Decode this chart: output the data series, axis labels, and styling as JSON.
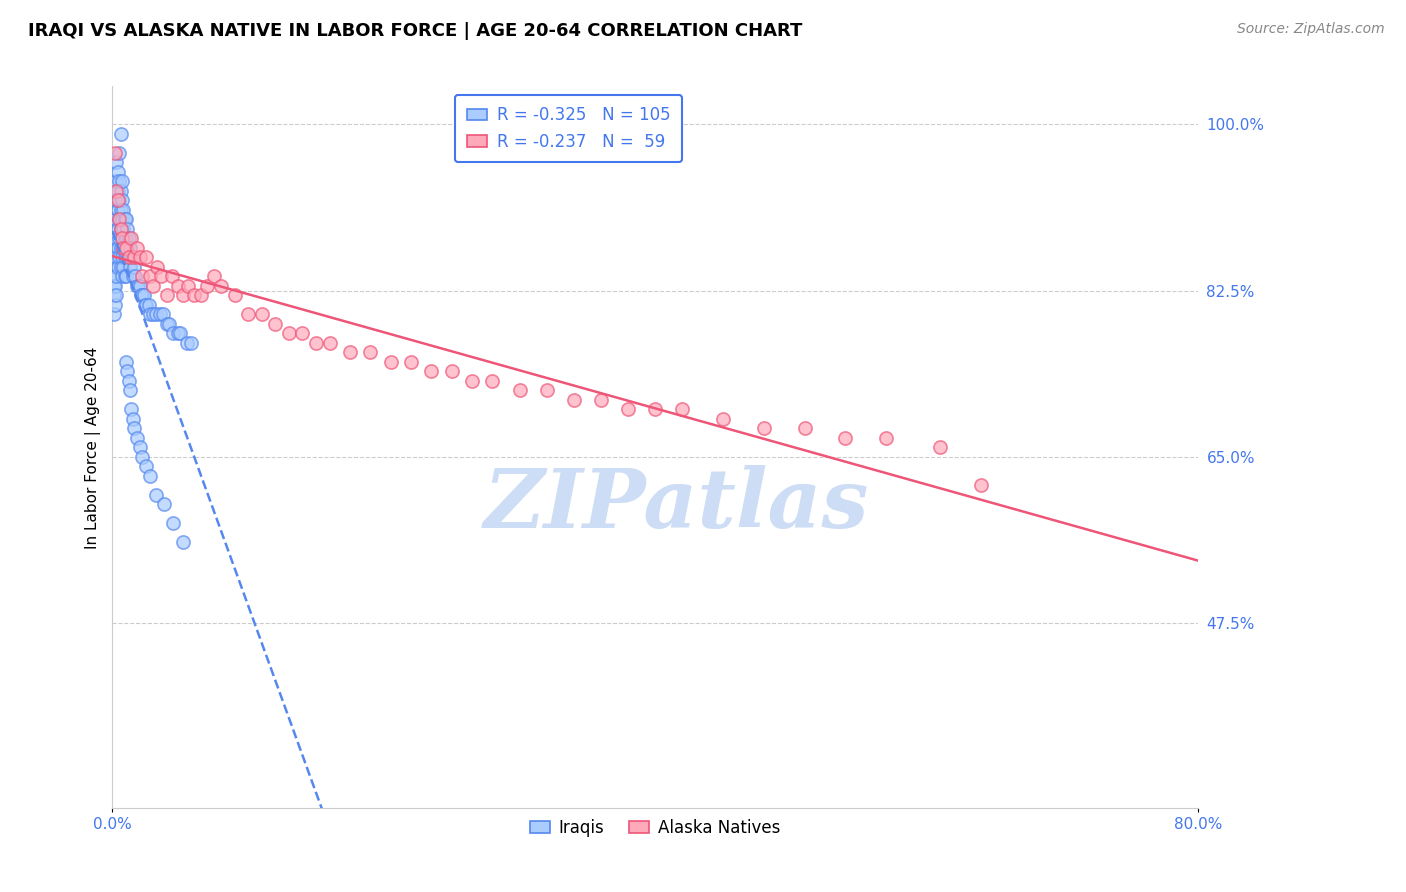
{
  "title": "IRAQI VS ALASKA NATIVE IN LABOR FORCE | AGE 20-64 CORRELATION CHART",
  "source": "Source: ZipAtlas.com",
  "ylabel": "In Labor Force | Age 20-64",
  "xlim": [
    0.0,
    0.8
  ],
  "ylim": [
    0.28,
    1.04
  ],
  "yticks": [
    1.0,
    0.825,
    0.65,
    0.475
  ],
  "ytick_labels": [
    "100.0%",
    "82.5%",
    "65.0%",
    "47.5%"
  ],
  "xtick_vals": [
    0.0,
    0.8
  ],
  "xtick_labels": [
    "0.0%",
    "80.0%"
  ],
  "iraqis": {
    "name": "Iraqis",
    "R": -0.325,
    "N": 105,
    "facecolor": "#aaccff",
    "edgecolor": "#5588ee",
    "trend_style": "--",
    "trend_color": "#5588ee",
    "x": [
      0.001,
      0.001,
      0.001,
      0.001,
      0.001,
      0.001,
      0.002,
      0.002,
      0.002,
      0.002,
      0.002,
      0.002,
      0.002,
      0.003,
      0.003,
      0.003,
      0.003,
      0.003,
      0.003,
      0.003,
      0.003,
      0.004,
      0.004,
      0.004,
      0.004,
      0.004,
      0.004,
      0.005,
      0.005,
      0.005,
      0.005,
      0.005,
      0.006,
      0.006,
      0.006,
      0.006,
      0.006,
      0.007,
      0.007,
      0.007,
      0.007,
      0.007,
      0.008,
      0.008,
      0.008,
      0.008,
      0.009,
      0.009,
      0.009,
      0.009,
      0.01,
      0.01,
      0.01,
      0.01,
      0.011,
      0.011,
      0.012,
      0.012,
      0.013,
      0.013,
      0.014,
      0.015,
      0.015,
      0.016,
      0.017,
      0.018,
      0.019,
      0.02,
      0.021,
      0.022,
      0.023,
      0.024,
      0.025,
      0.027,
      0.028,
      0.03,
      0.032,
      0.035,
      0.037,
      0.04,
      0.042,
      0.045,
      0.048,
      0.05,
      0.055,
      0.058,
      0.01,
      0.011,
      0.012,
      0.013,
      0.014,
      0.015,
      0.016,
      0.018,
      0.02,
      0.022,
      0.025,
      0.028,
      0.032,
      0.038,
      0.045,
      0.052,
      0.005,
      0.006,
      0.007
    ],
    "y": [
      0.88,
      0.86,
      0.84,
      0.83,
      0.82,
      0.8,
      0.92,
      0.9,
      0.88,
      0.87,
      0.85,
      0.83,
      0.81,
      0.96,
      0.94,
      0.92,
      0.9,
      0.88,
      0.86,
      0.84,
      0.82,
      0.95,
      0.93,
      0.91,
      0.89,
      0.87,
      0.85,
      0.94,
      0.92,
      0.9,
      0.88,
      0.86,
      0.93,
      0.91,
      0.89,
      0.87,
      0.85,
      0.92,
      0.9,
      0.88,
      0.86,
      0.84,
      0.91,
      0.89,
      0.87,
      0.85,
      0.9,
      0.88,
      0.86,
      0.84,
      0.9,
      0.88,
      0.86,
      0.84,
      0.89,
      0.87,
      0.88,
      0.86,
      0.87,
      0.85,
      0.86,
      0.86,
      0.84,
      0.85,
      0.84,
      0.83,
      0.83,
      0.83,
      0.82,
      0.82,
      0.82,
      0.81,
      0.81,
      0.81,
      0.8,
      0.8,
      0.8,
      0.8,
      0.8,
      0.79,
      0.79,
      0.78,
      0.78,
      0.78,
      0.77,
      0.77,
      0.75,
      0.74,
      0.73,
      0.72,
      0.7,
      0.69,
      0.68,
      0.67,
      0.66,
      0.65,
      0.64,
      0.63,
      0.61,
      0.6,
      0.58,
      0.56,
      0.97,
      0.99,
      0.94
    ]
  },
  "alaska": {
    "name": "Alaska Natives",
    "R": -0.237,
    "N": 59,
    "facecolor": "#ffaabb",
    "edgecolor": "#ee5577",
    "trend_style": "-",
    "trend_color": "#ee5577",
    "x": [
      0.002,
      0.003,
      0.004,
      0.005,
      0.006,
      0.007,
      0.008,
      0.01,
      0.012,
      0.014,
      0.016,
      0.018,
      0.02,
      0.022,
      0.025,
      0.028,
      0.03,
      0.033,
      0.036,
      0.04,
      0.044,
      0.048,
      0.052,
      0.056,
      0.06,
      0.065,
      0.07,
      0.075,
      0.08,
      0.09,
      0.1,
      0.11,
      0.12,
      0.13,
      0.14,
      0.15,
      0.16,
      0.175,
      0.19,
      0.205,
      0.22,
      0.235,
      0.25,
      0.265,
      0.28,
      0.3,
      0.32,
      0.34,
      0.36,
      0.38,
      0.4,
      0.42,
      0.45,
      0.48,
      0.51,
      0.54,
      0.57,
      0.61,
      0.64
    ],
    "y": [
      0.97,
      0.93,
      0.92,
      0.9,
      0.89,
      0.88,
      0.87,
      0.87,
      0.86,
      0.88,
      0.86,
      0.87,
      0.86,
      0.84,
      0.86,
      0.84,
      0.83,
      0.85,
      0.84,
      0.82,
      0.84,
      0.83,
      0.82,
      0.83,
      0.82,
      0.82,
      0.83,
      0.84,
      0.83,
      0.82,
      0.8,
      0.8,
      0.79,
      0.78,
      0.78,
      0.77,
      0.77,
      0.76,
      0.76,
      0.75,
      0.75,
      0.74,
      0.74,
      0.73,
      0.73,
      0.72,
      0.72,
      0.71,
      0.71,
      0.7,
      0.7,
      0.7,
      0.69,
      0.68,
      0.68,
      0.67,
      0.67,
      0.66,
      0.62
    ]
  },
  "watermark": "ZIPatlas",
  "watermark_color": "#ccddf5",
  "background_color": "#ffffff",
  "grid_color": "#cccccc",
  "title_fontsize": 13,
  "axis_label_fontsize": 11,
  "tick_fontsize": 11,
  "legend_fontsize": 12,
  "source_fontsize": 10,
  "tick_color": "#4477ee"
}
